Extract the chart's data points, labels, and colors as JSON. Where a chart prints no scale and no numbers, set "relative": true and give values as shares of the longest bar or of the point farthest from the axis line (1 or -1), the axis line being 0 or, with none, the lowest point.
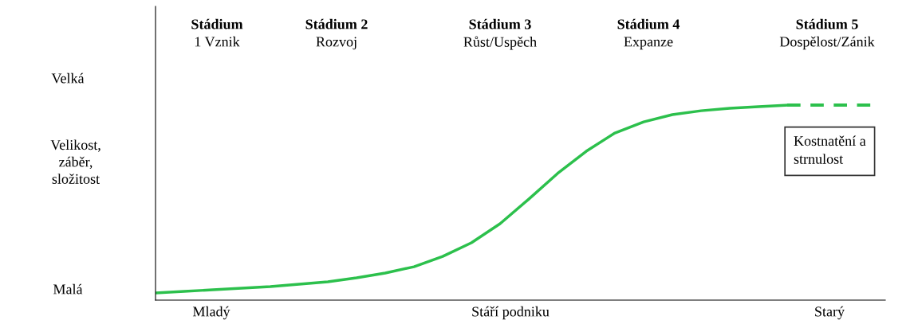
{
  "chart_data": {
    "type": "line",
    "relative": true,
    "xlabel": "Stáří podniku",
    "ylabel": "Velikost,\nzáběr,\nsložitost",
    "categories": [
      null,
      null,
      null,
      null,
      null,
      null,
      null,
      null,
      null,
      null,
      null,
      null,
      null,
      null,
      null,
      null,
      null,
      null,
      null,
      null,
      null,
      null,
      null,
      null,
      null,
      null
    ],
    "series": [
      {
        "color": "#2cc04c",
        "line_style": "solid",
        "values": [
          0.037,
          0.045,
          0.053,
          0.061,
          0.069,
          0.082,
          0.094,
          0.114,
          0.139,
          0.171,
          0.224,
          0.294,
          0.392,
          0.518,
          0.649,
          0.763,
          0.857,
          0.914,
          0.951,
          0.971,
          0.984,
          0.992,
          1.0,
          null,
          null,
          null
        ]
      },
      {
        "color": "#2cc04c",
        "line_style": "dashed",
        "values": [
          null,
          null,
          null,
          null,
          null,
          null,
          null,
          null,
          null,
          null,
          null,
          null,
          null,
          null,
          null,
          null,
          null,
          null,
          null,
          null,
          null,
          null,
          1.0,
          1.0,
          1.0,
          1.0
        ]
      }
    ],
    "annotations": [
      "Stádium\n1 Vznik",
      "Stádium 2\nRozvoj",
      "Stádium 3\nRůst/Uspěch",
      "Stádium 4\nExpanze",
      "Stádium 5\nDospělost/Zánik",
      "Velká",
      "Malá",
      "Mladý",
      "Starý",
      "Kostnatění a\nstrnulost"
    ],
    "legend": false
  }
}
